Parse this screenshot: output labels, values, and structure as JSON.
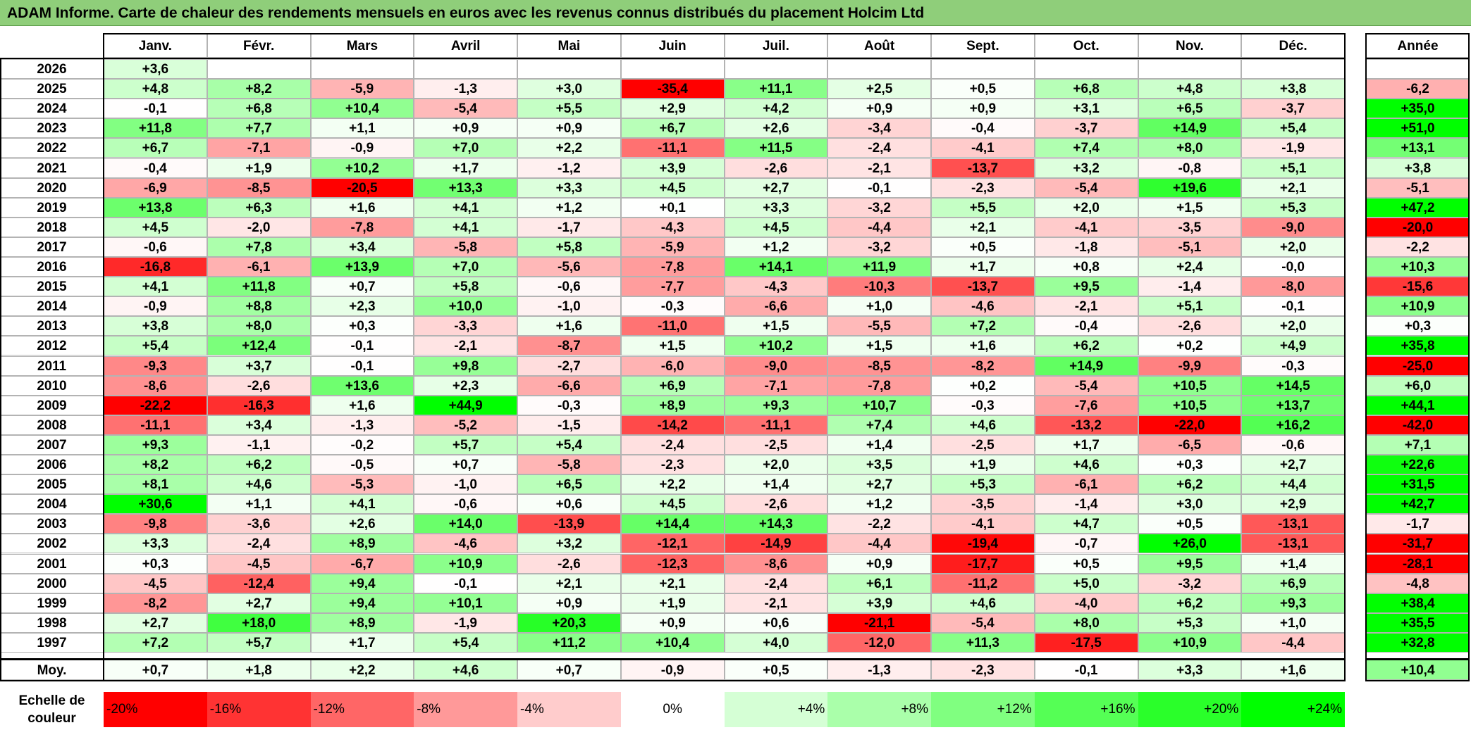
{
  "title": "ADAM Informe. Carte de chaleur des rendements mensuels en euros avec les revenus connus distribués du placement Holcim Ltd",
  "months": [
    "Janv.",
    "Févr.",
    "Mars",
    "Avril",
    "Mai",
    "Juin",
    "Juil.",
    "Août",
    "Sept.",
    "Oct.",
    "Nov.",
    "Déc."
  ],
  "annual_label": "Année",
  "average_label": "Moy.",
  "scale_label_line1": "Echelle de",
  "scale_label_line2": "couleur",
  "colors": {
    "red_max": "#ff0000",
    "neutral": "#ffffff",
    "green_max": "#00ff00",
    "title_bg": "#8fce7a"
  },
  "chart_data": {
    "type": "heatmap",
    "title": "ADAM Informe. Carte de chaleur des rendements mensuels en euros avec les revenus connus distribués du placement Holcim Ltd",
    "x_categories": [
      "Janv.",
      "Févr.",
      "Mars",
      "Avril",
      "Mai",
      "Juin",
      "Juil.",
      "Août",
      "Sept.",
      "Oct.",
      "Nov.",
      "Déc."
    ],
    "rows": [
      {
        "year": "2026",
        "values": [
          "+3,6",
          "",
          "",
          "",
          "",
          "",
          "",
          "",
          "",
          "",
          "",
          ""
        ],
        "annual": ""
      },
      {
        "year": "2025",
        "values": [
          "+4,8",
          "+8,2",
          "-5,9",
          "-1,3",
          "+3,0",
          "-35,4",
          "+11,1",
          "+2,5",
          "+0,5",
          "+6,8",
          "+4,8",
          "+3,8"
        ],
        "annual": "-6,2"
      },
      {
        "year": "2024",
        "values": [
          "-0,1",
          "+6,8",
          "+10,4",
          "-5,4",
          "+5,5",
          "+2,9",
          "+4,2",
          "+0,9",
          "+0,9",
          "+3,1",
          "+6,5",
          "-3,7"
        ],
        "annual": "+35,0"
      },
      {
        "year": "2023",
        "values": [
          "+11,8",
          "+7,7",
          "+1,1",
          "+0,9",
          "+0,9",
          "+6,7",
          "+2,6",
          "-3,4",
          "-0,4",
          "-3,7",
          "+14,9",
          "+5,4"
        ],
        "annual": "+51,0"
      },
      {
        "year": "2022",
        "values": [
          "+6,7",
          "-7,1",
          "-0,9",
          "+7,0",
          "+2,2",
          "-11,1",
          "+11,5",
          "-2,4",
          "-4,1",
          "+7,4",
          "+8,0",
          "-1,9"
        ],
        "annual": "+13,1"
      },
      {
        "year": "2021",
        "values": [
          "-0,4",
          "+1,9",
          "+10,2",
          "+1,7",
          "-1,2",
          "+3,9",
          "-2,6",
          "-2,1",
          "-13,7",
          "+3,2",
          "-0,8",
          "+5,1"
        ],
        "annual": "+3,8"
      },
      {
        "year": "2020",
        "values": [
          "-6,9",
          "-8,5",
          "-20,5",
          "+13,3",
          "+3,3",
          "+4,5",
          "+2,7",
          "-0,1",
          "-2,3",
          "-5,4",
          "+19,6",
          "+2,1"
        ],
        "annual": "-5,1"
      },
      {
        "year": "2019",
        "values": [
          "+13,8",
          "+6,3",
          "+1,6",
          "+4,1",
          "+1,2",
          "+0,1",
          "+3,3",
          "-3,2",
          "+5,5",
          "+2,0",
          "+1,5",
          "+5,3"
        ],
        "annual": "+47,2"
      },
      {
        "year": "2018",
        "values": [
          "+4,5",
          "-2,0",
          "-7,8",
          "+4,1",
          "-1,7",
          "-4,3",
          "+4,5",
          "-4,4",
          "+2,1",
          "-4,1",
          "-3,5",
          "-9,0"
        ],
        "annual": "-20,0"
      },
      {
        "year": "2017",
        "values": [
          "-0,6",
          "+7,8",
          "+3,4",
          "-5,8",
          "+5,8",
          "-5,9",
          "+1,2",
          "-3,2",
          "+0,5",
          "-1,8",
          "-5,1",
          "+2,0"
        ],
        "annual": "-2,2"
      },
      {
        "year": "2016",
        "values": [
          "-16,8",
          "-6,1",
          "+13,9",
          "+7,0",
          "-5,6",
          "-7,8",
          "+14,1",
          "+11,9",
          "+1,7",
          "+0,8",
          "+2,4",
          "-0,0"
        ],
        "annual": "+10,3"
      },
      {
        "year": "2015",
        "values": [
          "+4,1",
          "+11,8",
          "+0,7",
          "+5,8",
          "-0,6",
          "-7,7",
          "-4,3",
          "-10,3",
          "-13,7",
          "+9,5",
          "-1,4",
          "-8,0"
        ],
        "annual": "-15,6"
      },
      {
        "year": "2014",
        "values": [
          "-0,9",
          "+8,8",
          "+2,3",
          "+10,0",
          "-1,0",
          "-0,3",
          "-6,6",
          "+1,0",
          "-4,6",
          "-2,1",
          "+5,1",
          "-0,1"
        ],
        "annual": "+10,9"
      },
      {
        "year": "2013",
        "values": [
          "+3,8",
          "+8,0",
          "+0,3",
          "-3,3",
          "+1,6",
          "-11,0",
          "+1,5",
          "-5,5",
          "+7,2",
          "-0,4",
          "-2,6",
          "+2,0"
        ],
        "annual": "+0,3"
      },
      {
        "year": "2012",
        "values": [
          "+5,4",
          "+12,4",
          "-0,1",
          "-2,1",
          "-8,7",
          "+1,5",
          "+10,2",
          "+1,5",
          "+1,6",
          "+6,2",
          "+0,2",
          "+4,9"
        ],
        "annual": "+35,8"
      },
      {
        "year": "2011",
        "values": [
          "-9,3",
          "+3,7",
          "-0,1",
          "+9,8",
          "-2,7",
          "-6,0",
          "-9,0",
          "-8,5",
          "-8,2",
          "+14,9",
          "-9,9",
          "-0,3"
        ],
        "annual": "-25,0"
      },
      {
        "year": "2010",
        "values": [
          "-8,6",
          "-2,6",
          "+13,6",
          "+2,3",
          "-6,6",
          "+6,9",
          "-7,1",
          "-7,8",
          "+0,2",
          "-5,4",
          "+10,5",
          "+14,5"
        ],
        "annual": "+6,0"
      },
      {
        "year": "2009",
        "values": [
          "-22,2",
          "-16,3",
          "+1,6",
          "+44,9",
          "-0,3",
          "+8,9",
          "+9,3",
          "+10,7",
          "-0,3",
          "-7,6",
          "+10,5",
          "+13,7"
        ],
        "annual": "+44,1"
      },
      {
        "year": "2008",
        "values": [
          "-11,1",
          "+3,4",
          "-1,3",
          "-5,2",
          "-1,5",
          "-14,2",
          "-11,1",
          "+7,4",
          "+4,6",
          "-13,2",
          "-22,0",
          "+16,2"
        ],
        "annual": "-42,0"
      },
      {
        "year": "2007",
        "values": [
          "+9,3",
          "-1,1",
          "-0,2",
          "+5,7",
          "+5,4",
          "-2,4",
          "-2,5",
          "+1,4",
          "-2,5",
          "+1,7",
          "-6,5",
          "-0,6"
        ],
        "annual": "+7,1"
      },
      {
        "year": "2006",
        "values": [
          "+8,2",
          "+6,2",
          "-0,5",
          "+0,7",
          "-5,8",
          "-2,3",
          "+2,0",
          "+3,5",
          "+1,9",
          "+4,6",
          "+0,3",
          "+2,7"
        ],
        "annual": "+22,6"
      },
      {
        "year": "2005",
        "values": [
          "+8,1",
          "+4,6",
          "-5,3",
          "-1,0",
          "+6,5",
          "+2,2",
          "+1,4",
          "+2,7",
          "+5,3",
          "-6,1",
          "+6,2",
          "+4,4"
        ],
        "annual": "+31,5"
      },
      {
        "year": "2004",
        "values": [
          "+30,6",
          "+1,1",
          "+4,1",
          "-0,6",
          "+0,6",
          "+4,5",
          "-2,6",
          "+1,2",
          "-3,5",
          "-1,4",
          "+3,0",
          "+2,9"
        ],
        "annual": "+42,7"
      },
      {
        "year": "2003",
        "values": [
          "-9,8",
          "-3,6",
          "+2,6",
          "+14,0",
          "-13,9",
          "+14,4",
          "+14,3",
          "-2,2",
          "-4,1",
          "+4,7",
          "+0,5",
          "-13,1"
        ],
        "annual": "-1,7"
      },
      {
        "year": "2002",
        "values": [
          "+3,3",
          "-2,4",
          "+8,9",
          "-4,6",
          "+3,2",
          "-12,1",
          "-14,9",
          "-4,4",
          "-19,4",
          "-0,7",
          "+26,0",
          "-13,1"
        ],
        "annual": "-31,7"
      },
      {
        "year": "2001",
        "values": [
          "+0,3",
          "-4,5",
          "-6,7",
          "+10,9",
          "-2,6",
          "-12,3",
          "-8,6",
          "+0,9",
          "-17,7",
          "+0,5",
          "+9,5",
          "+1,4"
        ],
        "annual": "-28,1"
      },
      {
        "year": "2000",
        "values": [
          "-4,5",
          "-12,4",
          "+9,4",
          "-0,1",
          "+2,1",
          "+2,1",
          "-2,4",
          "+6,1",
          "-11,2",
          "+5,0",
          "-3,2",
          "+6,9"
        ],
        "annual": "-4,8"
      },
      {
        "year": "1999",
        "values": [
          "-8,2",
          "+2,7",
          "+9,4",
          "+10,1",
          "+0,9",
          "+1,9",
          "-2,1",
          "+3,9",
          "+4,6",
          "-4,0",
          "+6,2",
          "+9,3"
        ],
        "annual": "+38,4"
      },
      {
        "year": "1998",
        "values": [
          "+2,7",
          "+18,0",
          "+8,9",
          "-1,9",
          "+20,3",
          "+0,9",
          "+0,6",
          "-21,1",
          "-5,4",
          "+8,0",
          "+5,3",
          "+1,0"
        ],
        "annual": "+35,5"
      },
      {
        "year": "1997",
        "values": [
          "+7,2",
          "+5,7",
          "+1,7",
          "+5,4",
          "+11,2",
          "+10,4",
          "+4,0",
          "-12,0",
          "+11,3",
          "-17,5",
          "+10,9",
          "-4,4"
        ],
        "annual": "+32,8"
      }
    ],
    "average": {
      "values": [
        "+0,7",
        "+1,8",
        "+2,2",
        "+4,6",
        "+0,7",
        "-0,9",
        "+0,5",
        "-1,3",
        "-2,3",
        "-0,1",
        "+3,3",
        "+1,6"
      ],
      "annual": "+10,4"
    },
    "color_scale": [
      "-20%",
      "-16%",
      "-12%",
      "-8%",
      "-4%",
      "0%",
      "+4%",
      "+8%",
      "+12%",
      "+16%",
      "+20%",
      "+24%"
    ]
  }
}
